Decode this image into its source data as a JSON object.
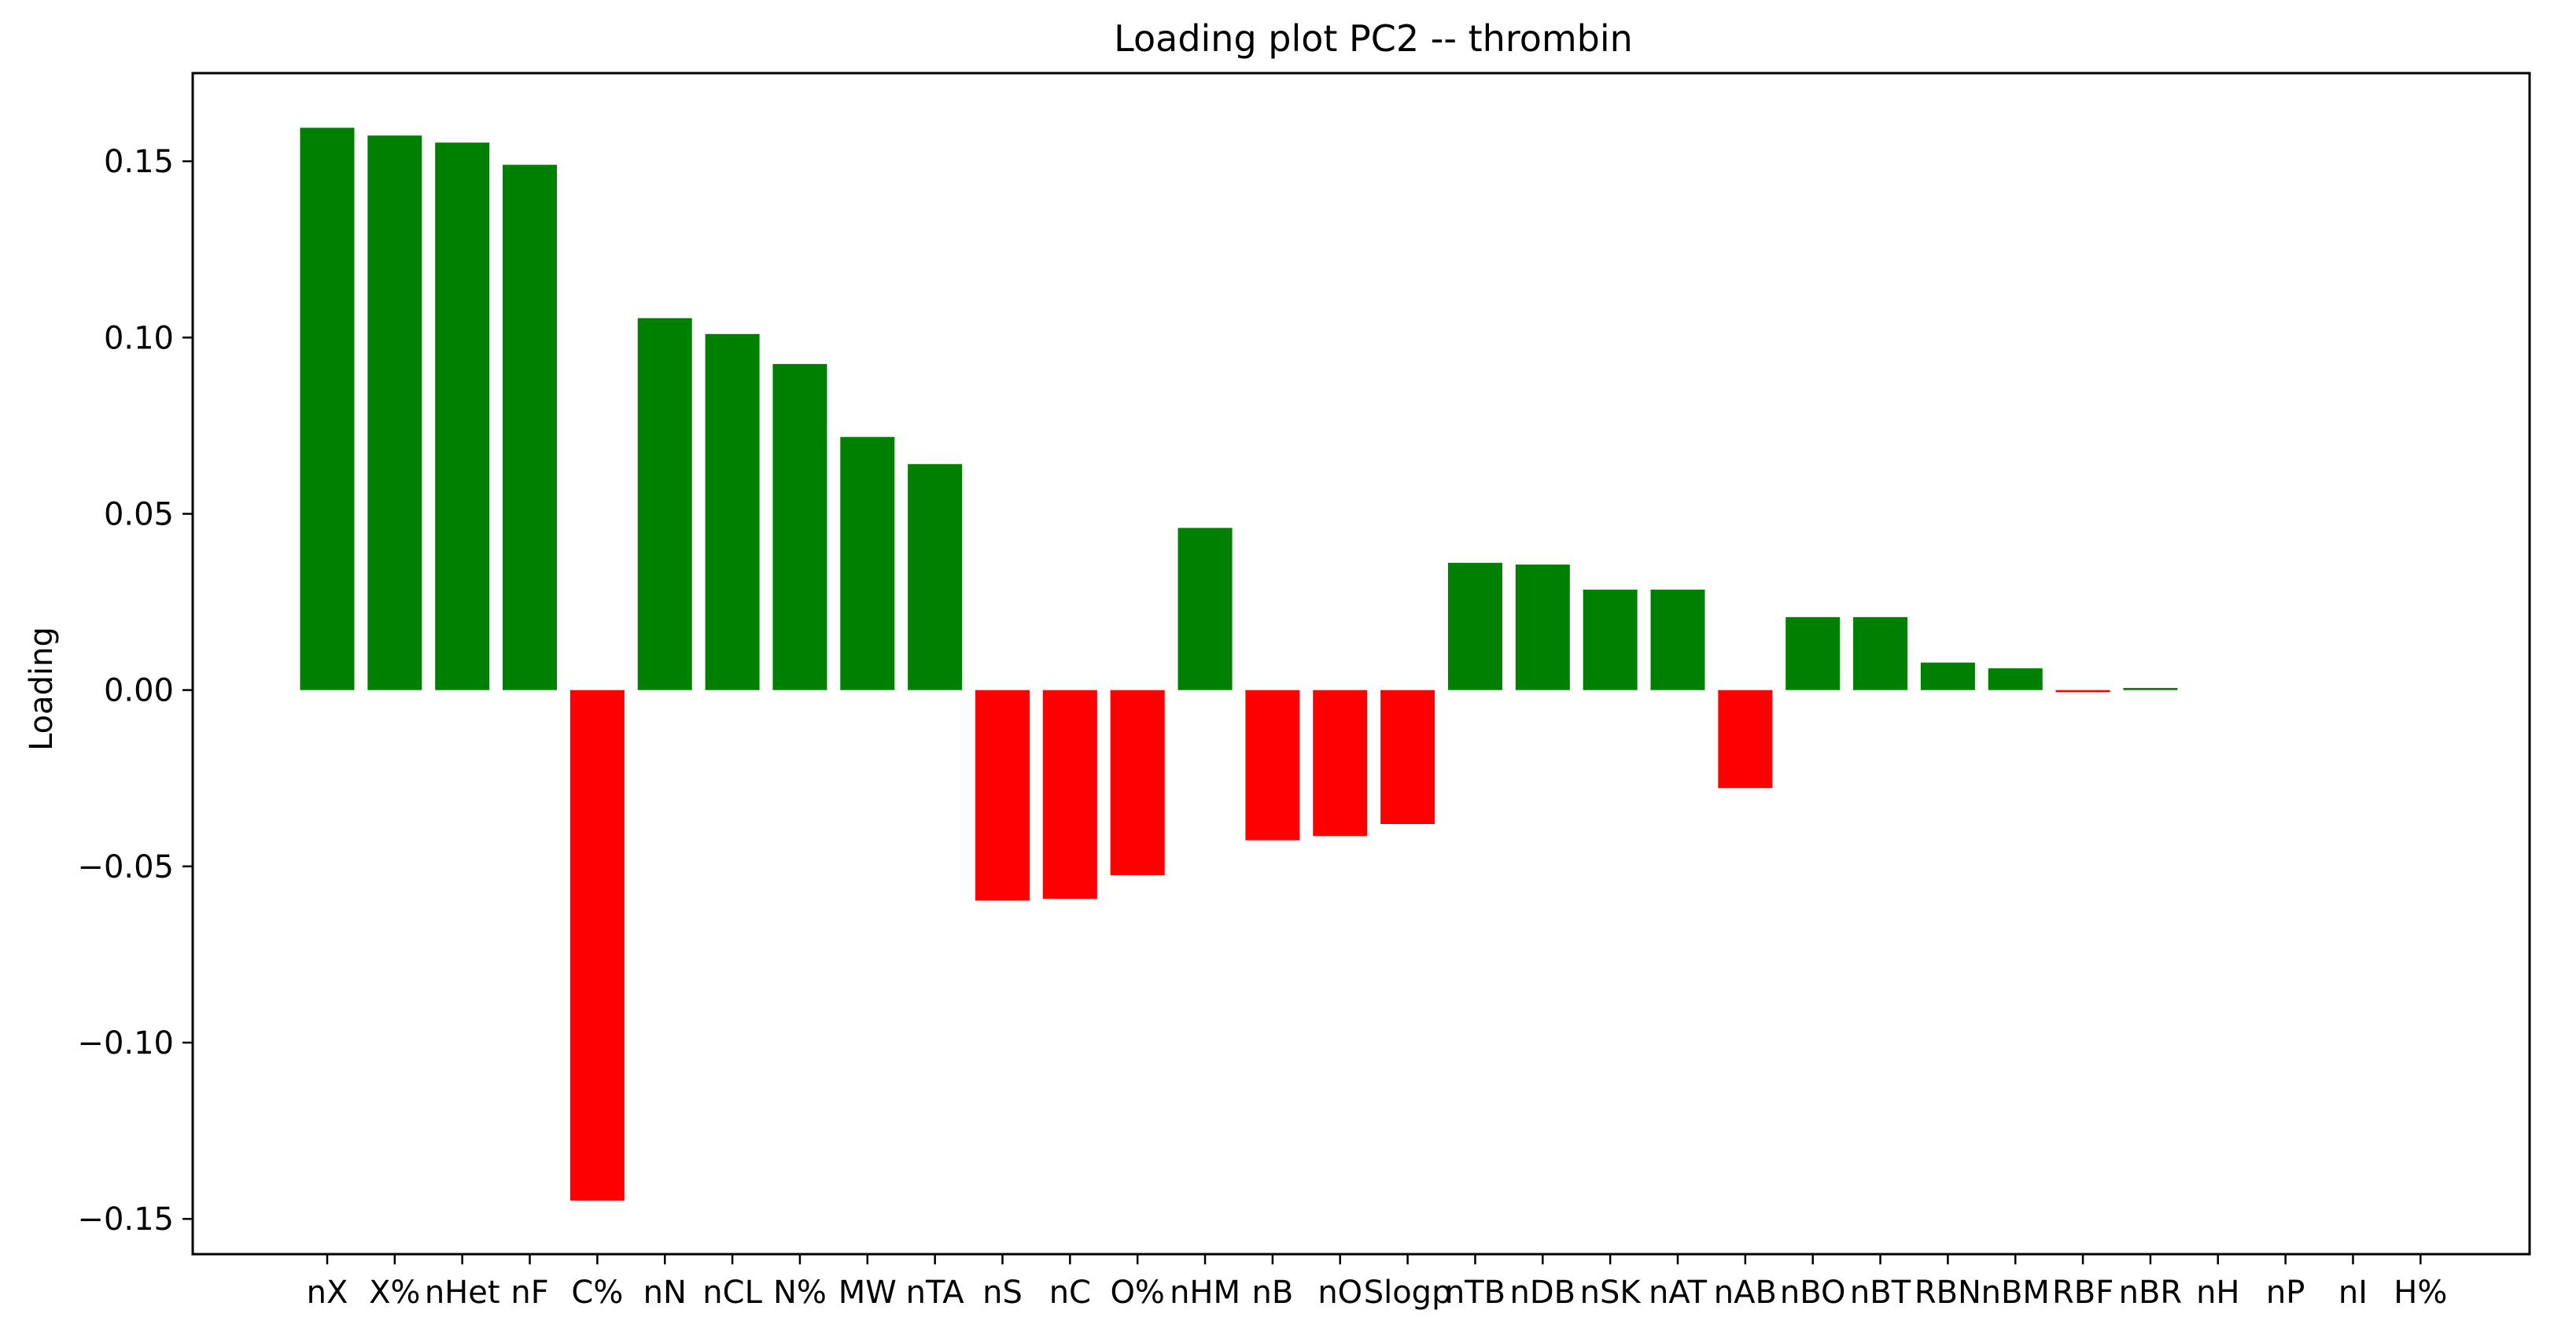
{
  "chart_data": {
    "type": "bar",
    "title": "Loading plot PC2 -- thrombin",
    "xlabel": "",
    "ylabel": "Loading",
    "ylim": [
      -0.16,
      0.175
    ],
    "yticks": [
      -0.15,
      -0.1,
      -0.05,
      0.0,
      0.05,
      0.1,
      0.15
    ],
    "ytick_labels": [
      "−0.15",
      "−0.10",
      "−0.05",
      "0.00",
      "0.05",
      "0.10",
      "0.15"
    ],
    "grid": false,
    "positive_color": "#008000",
    "negative_color": "#ff0000",
    "categories": [
      "nX",
      "X%",
      "nHet",
      "nF",
      "C%",
      "nN",
      "nCL",
      "N%",
      "MW",
      "nTA",
      "nS",
      "nC",
      "O%",
      "nHM",
      "nB",
      "nO",
      "Slogp",
      "nTB",
      "nDB",
      "nSK",
      "nAT",
      "nAB",
      "nBO",
      "nBT",
      "RBN",
      "nBM",
      "RBF",
      "nBR",
      "nH",
      "nP",
      "nI",
      "H%"
    ],
    "values": [
      0.1595,
      0.1573,
      0.1553,
      0.149,
      -0.1448,
      0.1055,
      0.101,
      0.0925,
      0.0718,
      0.0641,
      -0.0597,
      -0.0592,
      -0.0525,
      0.046,
      -0.0426,
      -0.0414,
      -0.038,
      0.0361,
      0.0356,
      0.0285,
      0.0285,
      -0.0278,
      0.0207,
      0.0207,
      0.0078,
      0.0062,
      -0.0006,
      0.0006,
      0.0,
      0.0,
      0.0,
      0.0
    ]
  }
}
